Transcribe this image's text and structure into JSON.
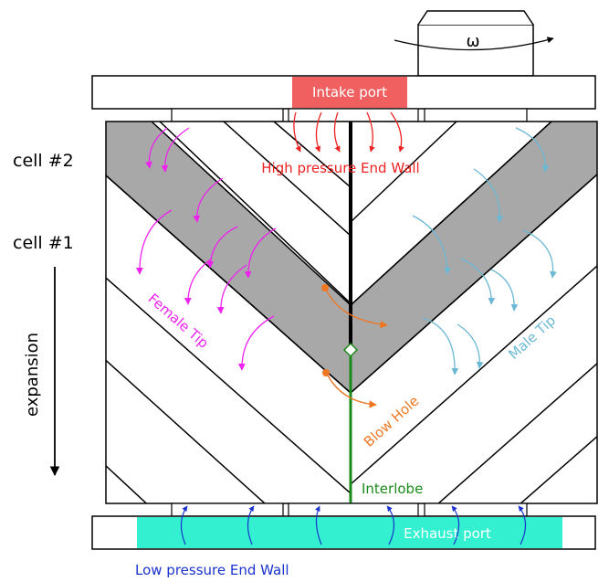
{
  "labels": {
    "omega": "ω",
    "intake_port": "Intake port",
    "high_pressure_end_wall": "High pressure End Wall",
    "cell_2": "cell #2",
    "cell_1": "cell #1",
    "expansion": "expansion",
    "female_tip": "Female Tip",
    "male_tip": "Male Tip",
    "blow_hole": "Blow Hole",
    "interlobe": "Interlobe",
    "exhaust_port": "Exhaust port",
    "low_pressure_end_wall": "Low pressure End Wall"
  },
  "colors": {
    "intake": "#f06060",
    "exhaust": "#33f0d0",
    "high_pressure_text": "#ee2222",
    "female": "#ee22ee",
    "male": "#6bb8d4",
    "blow_hole": "#ee7722",
    "interlobe": "#1a8a1a",
    "low_pressure": "#1a33cc",
    "cell_fill": "#a8a8a8"
  }
}
